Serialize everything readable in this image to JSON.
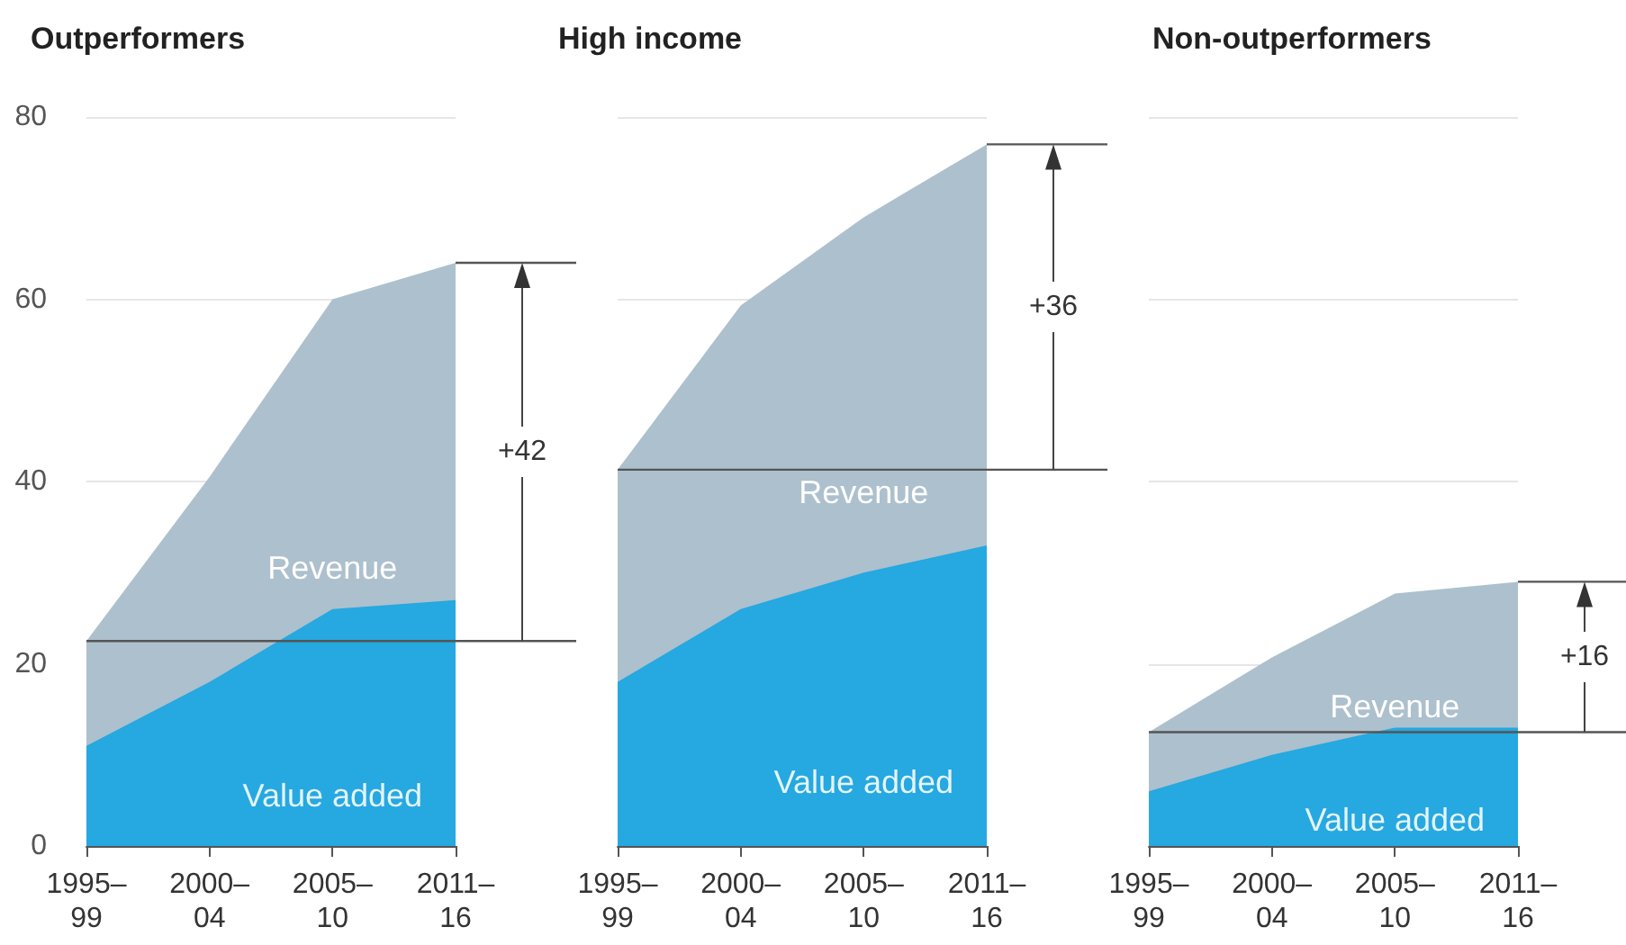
{
  "chart_data": [
    {
      "type": "area",
      "title": "Outperformers",
      "categories": [
        "1995–99",
        "2000–04",
        "2005–10",
        "2011–16"
      ],
      "ylim": [
        0,
        80
      ],
      "yticks": [
        0,
        20,
        40,
        60,
        80
      ],
      "grid": "y",
      "series": [
        {
          "name": "Revenue",
          "color": "#adc0cd",
          "values": [
            22.5,
            40.5,
            60,
            64
          ]
        },
        {
          "name": "Value added",
          "color": "#26a8e0",
          "values": [
            11,
            18,
            26,
            27
          ]
        }
      ],
      "ref_lines": [
        {
          "axis": "y",
          "value": 22.5,
          "color": "#555555"
        }
      ],
      "annotations": [
        "+42"
      ]
    },
    {
      "type": "area",
      "title": "High income",
      "categories": [
        "1995–99",
        "2000–04",
        "2005–10",
        "2011–16"
      ],
      "ylim": [
        0,
        80
      ],
      "yticks": [
        0,
        20,
        40,
        60,
        80
      ],
      "grid": "y",
      "tick_labels": "x",
      "series": [
        {
          "name": "Revenue",
          "color": "#adc0cd",
          "values": [
            41.3,
            59.3,
            69,
            77
          ]
        },
        {
          "name": "Value added",
          "color": "#26a8e0",
          "values": [
            18,
            26,
            30,
            33
          ]
        }
      ],
      "ref_lines": [
        {
          "axis": "y",
          "value": 41.3,
          "color": "#555555"
        }
      ],
      "annotations": [
        "+36"
      ]
    },
    {
      "type": "area",
      "title": "Non-outperformers",
      "categories": [
        "1995–99",
        "2000–04",
        "2005–10",
        "2011–16"
      ],
      "ylim": [
        0,
        80
      ],
      "yticks": [
        0,
        20,
        40,
        60,
        80
      ],
      "grid": "y",
      "tick_labels": "x",
      "series": [
        {
          "name": "Revenue",
          "color": "#adc0cd",
          "values": [
            12.5,
            20.7,
            27.7,
            29
          ]
        },
        {
          "name": "Value added",
          "color": "#26a8e0",
          "values": [
            6,
            10,
            13,
            13
          ]
        }
      ],
      "ref_lines": [
        {
          "axis": "y",
          "value": 12.5,
          "color": "#555555"
        }
      ],
      "annotations": [
        "+16"
      ]
    }
  ]
}
